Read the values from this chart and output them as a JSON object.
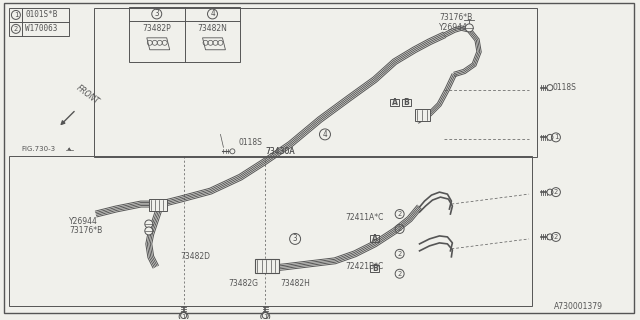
{
  "bg_color": "#f0f0eb",
  "line_color": "#555555",
  "diagram_code": "A730001379",
  "legend_items": [
    {
      "num": "1",
      "code": "0101S*B"
    },
    {
      "num": "2",
      "code": "W170063"
    }
  ],
  "callout_items": [
    {
      "num": "3",
      "code": "73482P"
    },
    {
      "num": "4",
      "code": "73482N"
    }
  ]
}
